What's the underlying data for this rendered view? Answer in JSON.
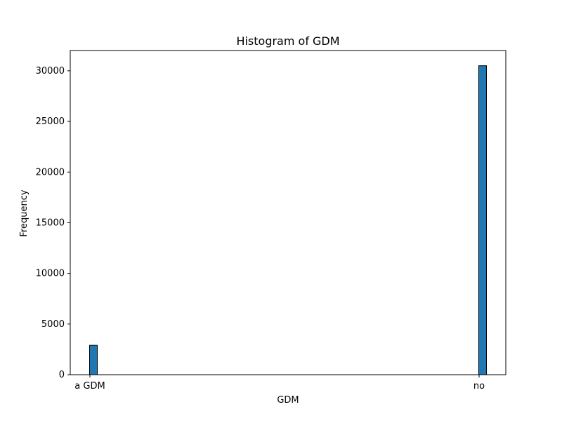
{
  "chart_data": {
    "type": "bar",
    "title": "Histogram of GDM",
    "xlabel": "GDM",
    "ylabel": "Frequency",
    "categories": [
      "a GDM",
      "no"
    ],
    "values": [
      2900,
      30500
    ],
    "ylim": [
      0,
      32000
    ],
    "yticks": [
      0,
      5000,
      10000,
      15000,
      20000,
      25000,
      30000
    ],
    "grid": false,
    "colors": {
      "bar_fill": "#1f77b4",
      "bar_edge": "#000000",
      "axes": "#000000"
    }
  }
}
